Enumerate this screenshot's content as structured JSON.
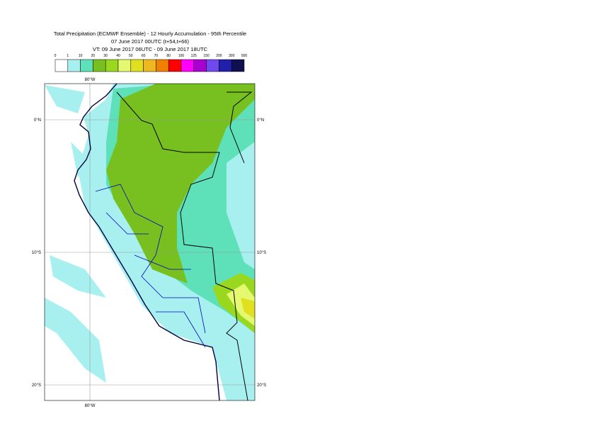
{
  "header": {
    "lines": [
      "Total Precipitation (ECMWF Ensemble) - 12 Hourly Accumulation - 95th Percentile",
      "07 June 2017 00UTC (t+54,t+66)",
      "VT: 09 June 2017 06UTC - 09 June 2017 18UTC"
    ]
  },
  "legend": {
    "labels": [
      "0",
      "1",
      "10",
      "20",
      "30",
      "40",
      "50",
      "60",
      "70",
      "80",
      "100",
      "125",
      "150",
      "200",
      "300",
      "500"
    ],
    "colors": [
      "#ffffff",
      "#a8f0f0",
      "#5ee0b8",
      "#78c020",
      "#9ad820",
      "#e4f870",
      "#e0e020",
      "#f0b820",
      "#f08000",
      "#ff0000",
      "#ff00ff",
      "#a800d0",
      "#7048f0",
      "#2020a8",
      "#101050"
    ]
  },
  "map": {
    "lon_label": "80°W",
    "lat_labels": [
      "0°N",
      "10°S",
      "20°S"
    ]
  }
}
